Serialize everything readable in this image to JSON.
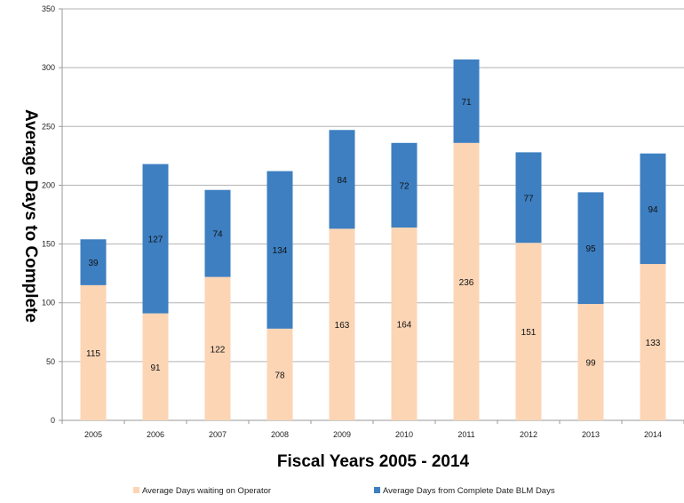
{
  "chart_data": {
    "type": "bar",
    "stacked": true,
    "categories": [
      "2005",
      "2006",
      "2007",
      "2008",
      "2009",
      "2010",
      "2011",
      "2012",
      "2013",
      "2014"
    ],
    "series": [
      {
        "name": "Average Days waiting on Operator",
        "color": "#FCD5B5",
        "values": [
          115,
          91,
          122,
          78,
          163,
          164,
          236,
          151,
          99,
          133
        ]
      },
      {
        "name": "Average Days from Complete Date BLM Days",
        "color": "#3D7FC1",
        "values": [
          39,
          127,
          74,
          134,
          84,
          72,
          71,
          77,
          95,
          94
        ]
      }
    ],
    "xlabel": "Fiscal Years 2005 - 2014",
    "ylabel": "Average Days to Complete",
    "ylim": [
      0,
      350
    ],
    "yticks": [
      0,
      50,
      100,
      150,
      200,
      250,
      300,
      350
    ],
    "grid": true,
    "legend_position": "bottom"
  }
}
